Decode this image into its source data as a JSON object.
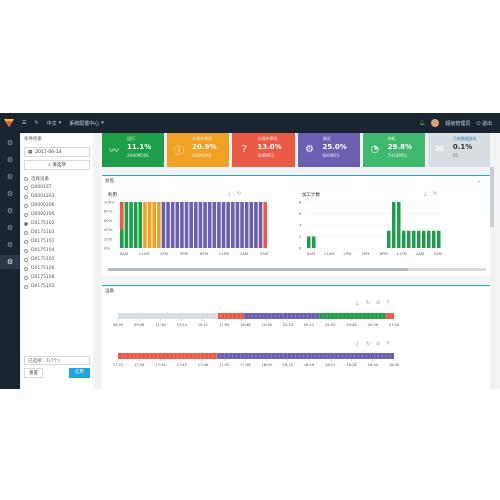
{
  "topbar": {
    "menu_icon": "menu-icon",
    "refresh_icon": "refresh-icon",
    "language": "中文",
    "system_menu": "系统配置中心",
    "user_name": "超级管理员",
    "logout": "退出"
  },
  "leftpanel": {
    "title": "条件检索",
    "date": "2017-06-14",
    "search_label": "清选项",
    "filter_label": "选择设备",
    "devices": [
      "D0001ST",
      "D0001203",
      "D0000206",
      "D0000100",
      "D0175102",
      "D0175103",
      "D0175101",
      "D0175104",
      "D0175105",
      "D0175106",
      "D0175108",
      "D0175101"
    ],
    "selected_index": 4,
    "status_placeholder": "已选择：1(7个)",
    "reset_label": "重置",
    "apply_label": "应用"
  },
  "cards": [
    {
      "title": "运行",
      "value": "11.1%",
      "sub": "2H40M50S",
      "color": "#1f9e4a",
      "icon": "pulse-icon"
    },
    {
      "title": "计划外停机",
      "value": "20.9%",
      "sub": "5H2M26S",
      "color": "#f0a124",
      "icon": "info-icon"
    },
    {
      "title": "计划外停机",
      "value": "13.0%",
      "sub": "3H8M5S",
      "color": "#ea5a47",
      "icon": "question-icon"
    },
    {
      "title": "调试",
      "value": "25.0%",
      "sub": "6H0M2S",
      "color": "#6a5fb0",
      "icon": "gear-icon"
    },
    {
      "title": "待机",
      "value": "29.8%",
      "sub": "7H10M5S",
      "color": "#3fb870",
      "icon": "timer-icon"
    },
    {
      "title": "已有数据缺失",
      "value": "0.1%",
      "sub": "0S",
      "color": "#d8dde3",
      "icon": "mail-icon"
    }
  ],
  "panel1": {
    "title": "总揽",
    "left_chart": {
      "title": "利用",
      "yticks": [
        "100%",
        "80%",
        "60%",
        "40%",
        "20%",
        "0%"
      ],
      "xticks": [
        "8AM",
        "11AM",
        "2PM",
        "5PM",
        "8PM",
        "11PM",
        "2AM",
        "5AM"
      ]
    },
    "right_chart": {
      "title": "加工计数",
      "yticks": [
        "8",
        "6",
        "4",
        "2",
        "0"
      ],
      "xticks": [
        "8AM",
        "11AM",
        "2PM",
        "5PM",
        "8PM",
        "11PM",
        "2AM",
        "5AM"
      ]
    }
  },
  "panel2": {
    "title": "设备",
    "timeline1_ticks": [
      "08:00",
      "09:48",
      "11:36",
      "13:24",
      "15:12",
      "17:00",
      "18:48",
      "20:36",
      "22:24",
      "00:12",
      "02:00",
      "03:48",
      "05:36",
      "07:24"
    ],
    "timeline2_ticks": [
      "17:22",
      "17:28",
      "17:34",
      "17:40",
      "17:46",
      "17:52",
      "17:58",
      "18:04",
      "18:10",
      "18:16",
      "18:22",
      "18:28",
      "18:34",
      "18:40"
    ]
  },
  "colors": {
    "run": "#1f9e4a",
    "planned": "#f0a124",
    "unplanned": "#ea5a47",
    "debug": "#6a5fb0",
    "idle": "#3fb870",
    "missing": "#d8dde3",
    "accent": "#1fa4e0"
  },
  "chart_data": [
    {
      "type": "bar",
      "title": "利用",
      "stacked": true,
      "ylim": [
        0,
        100
      ],
      "series": [
        {
          "color": "#1f9e4a",
          "values": [
            40,
            100,
            100,
            100,
            100,
            0,
            0,
            0,
            0,
            0,
            0,
            0,
            0,
            0,
            0,
            0,
            0,
            0,
            0,
            0,
            0,
            0,
            0,
            0,
            0,
            0,
            0,
            0,
            0,
            0,
            0,
            0
          ]
        },
        {
          "color": "#f0a124",
          "values": [
            0,
            0,
            0,
            0,
            0,
            100,
            100,
            100,
            100,
            0,
            0,
            0,
            0,
            0,
            0,
            0,
            0,
            0,
            0,
            0,
            0,
            0,
            0,
            0,
            0,
            0,
            0,
            0,
            0,
            0,
            0,
            0
          ]
        },
        {
          "color": "#ea5a47",
          "values": [
            60,
            0,
            0,
            0,
            0,
            0,
            0,
            0,
            0,
            0,
            0,
            0,
            0,
            0,
            0,
            0,
            0,
            0,
            0,
            0,
            0,
            0,
            0,
            0,
            0,
            0,
            0,
            0,
            0,
            0,
            0,
            100
          ]
        },
        {
          "color": "#6a5fb0",
          "values": [
            0,
            0,
            0,
            0,
            0,
            0,
            0,
            0,
            0,
            100,
            100,
            100,
            100,
            100,
            100,
            100,
            100,
            100,
            100,
            100,
            100,
            100,
            100,
            100,
            100,
            100,
            100,
            100,
            100,
            100,
            100,
            0
          ]
        }
      ]
    },
    {
      "type": "bar",
      "title": "加工计数",
      "ylim": [
        0,
        8
      ],
      "values": [
        2,
        2,
        0,
        0,
        0,
        0,
        0,
        0,
        0,
        0,
        0,
        0,
        0,
        0,
        0,
        0,
        3,
        8,
        8,
        3,
        3,
        3,
        3,
        3,
        3,
        3,
        3
      ]
    }
  ],
  "timeline1": [
    {
      "color": "#d8dde3",
      "span": 8.4
    },
    {
      "color": "#ea5a47",
      "span": 2.2
    },
    {
      "color": "#6a5fb0",
      "span": 6.3
    },
    {
      "color": "#1f9e4a",
      "span": 5.6
    },
    {
      "color": "#ea5a47",
      "span": 0.7
    }
  ],
  "timeline2": [
    {
      "color": "#ea5a47",
      "span": 9
    },
    {
      "color": "#6a5fb0",
      "span": 16
    }
  ]
}
